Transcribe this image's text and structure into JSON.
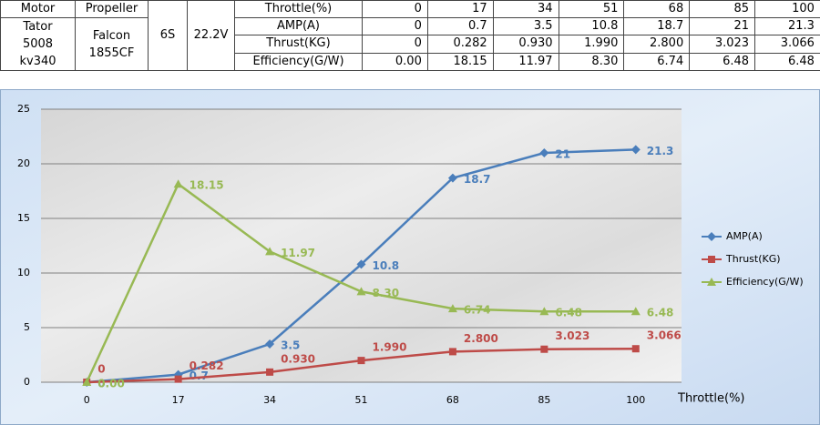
{
  "table": {
    "headers": [
      "Motor",
      "Propeller"
    ],
    "motor": [
      "Tator",
      "5008",
      "kv340"
    ],
    "propeller": [
      "Falcon",
      "1855CF"
    ],
    "cells": "6S",
    "voltage": "22.2V",
    "rows": [
      [
        "Throttle(%)",
        "0",
        "17",
        "34",
        "51",
        "68",
        "85",
        "100"
      ],
      [
        "AMP(A)",
        "0",
        "0.7",
        "3.5",
        "10.8",
        "18.7",
        "21",
        "21.3"
      ],
      [
        "Thrust(KG)",
        "0",
        "0.282",
        "0.930",
        "1.990",
        "2.800",
        "3.023",
        "3.066"
      ],
      [
        "Efficiency(G/W)",
        "0.00",
        "18.15",
        "11.97",
        "8.30",
        "6.74",
        "6.48",
        "6.48"
      ]
    ]
  },
  "chart_data": {
    "type": "line",
    "x_label": "Throttle(%)",
    "categories": [
      "0",
      "17",
      "34",
      "51",
      "68",
      "85",
      "100"
    ],
    "ylim": [
      0,
      25
    ],
    "yticks": [
      0,
      5,
      10,
      15,
      20,
      25
    ],
    "grid": true,
    "legend": "right",
    "series": [
      {
        "name": "AMP(A)",
        "color": "#4a7ebb",
        "marker": "diamond",
        "values": [
          0,
          0.7,
          3.5,
          10.8,
          18.7,
          21,
          21.3
        ]
      },
      {
        "name": "Thrust(KG)",
        "color": "#be4b48",
        "marker": "square",
        "values": [
          0,
          0.282,
          0.93,
          1.99,
          2.8,
          3.023,
          3.066
        ],
        "value_labels": [
          "0",
          "0.282",
          "0.930",
          "1.990",
          "2.800",
          "3.023",
          "3.066"
        ]
      },
      {
        "name": "Efficiency(G/W)",
        "color": "#98b954",
        "marker": "triangle",
        "values": [
          0,
          18.15,
          11.97,
          8.3,
          6.74,
          6.48,
          6.48
        ],
        "value_labels": [
          "0.00",
          "18.15",
          "11.97",
          "8.30",
          "6.74",
          "6.48",
          "6.48"
        ]
      }
    ]
  }
}
